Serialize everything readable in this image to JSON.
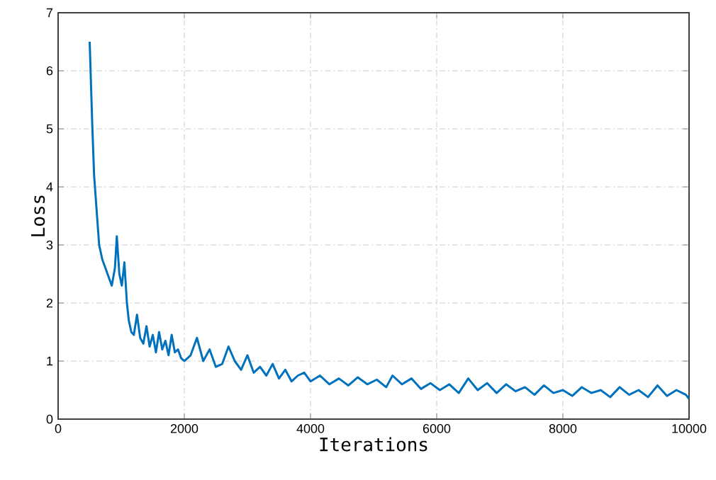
{
  "chart_data": {
    "type": "line",
    "xlabel": "Iterations",
    "ylabel": "Loss",
    "xlim": [
      0,
      10000
    ],
    "xticks": [
      0,
      2000,
      4000,
      6000,
      8000,
      10000
    ],
    "ylim": [
      0,
      7
    ],
    "yticks": [
      0,
      1,
      2,
      3,
      4,
      5,
      6,
      7
    ],
    "grid": true,
    "line_style": "solid",
    "marker": "none",
    "series": [
      {
        "color": "#0072bd",
        "x": [
          500,
          540,
          570,
          610,
          650,
          700,
          750,
          800,
          850,
          900,
          930,
          970,
          1010,
          1050,
          1090,
          1120,
          1160,
          1200,
          1250,
          1300,
          1350,
          1400,
          1450,
          1500,
          1550,
          1600,
          1650,
          1700,
          1750,
          1800,
          1850,
          1900,
          1950,
          2000,
          2100,
          2200,
          2300,
          2400,
          2500,
          2600,
          2700,
          2800,
          2900,
          3000,
          3100,
          3200,
          3300,
          3400,
          3500,
          3600,
          3700,
          3800,
          3900,
          4000,
          4150,
          4300,
          4450,
          4600,
          4750,
          4900,
          5050,
          5200,
          5300,
          5450,
          5600,
          5750,
          5900,
          6050,
          6200,
          6350,
          6500,
          6650,
          6800,
          6950,
          7100,
          7250,
          7400,
          7550,
          7700,
          7850,
          8000,
          8150,
          8300,
          8450,
          8600,
          8750,
          8900,
          9050,
          9200,
          9350,
          9500,
          9650,
          9800,
          9950,
          10000
        ],
        "values": [
          6.5,
          5.1,
          4.2,
          3.6,
          3.0,
          2.75,
          2.6,
          2.45,
          2.3,
          2.6,
          3.15,
          2.5,
          2.3,
          2.7,
          2.0,
          1.7,
          1.5,
          1.45,
          1.8,
          1.4,
          1.3,
          1.6,
          1.25,
          1.45,
          1.15,
          1.5,
          1.2,
          1.35,
          1.1,
          1.45,
          1.15,
          1.2,
          1.05,
          1.0,
          1.1,
          1.4,
          1.0,
          1.2,
          0.9,
          0.95,
          1.25,
          1.0,
          0.85,
          1.1,
          0.8,
          0.9,
          0.75,
          0.95,
          0.7,
          0.85,
          0.65,
          0.75,
          0.8,
          0.65,
          0.75,
          0.6,
          0.7,
          0.58,
          0.72,
          0.6,
          0.68,
          0.55,
          0.75,
          0.6,
          0.7,
          0.52,
          0.62,
          0.5,
          0.6,
          0.45,
          0.7,
          0.5,
          0.62,
          0.45,
          0.6,
          0.48,
          0.55,
          0.42,
          0.58,
          0.45,
          0.5,
          0.4,
          0.55,
          0.45,
          0.5,
          0.38,
          0.55,
          0.42,
          0.5,
          0.38,
          0.58,
          0.4,
          0.5,
          0.42,
          0.35
        ]
      }
    ]
  }
}
